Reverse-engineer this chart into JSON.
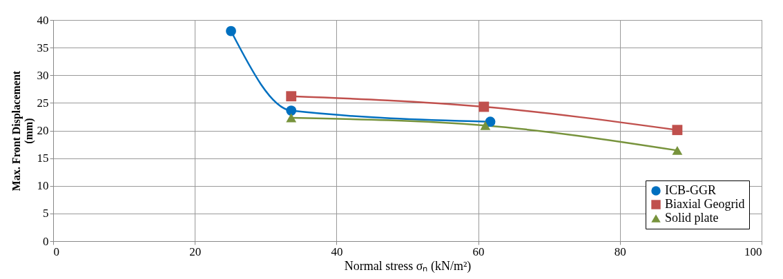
{
  "chart_data": {
    "type": "line",
    "xlabel": "Normal stress σₙ (kN/m²)",
    "ylabel": "Max. Front Displacement (mm)",
    "xlim": [
      0,
      100
    ],
    "xticks": [
      0,
      20,
      40,
      60,
      80,
      100
    ],
    "ylim": [
      0,
      40
    ],
    "yticks": [
      0,
      5,
      10,
      15,
      20,
      25,
      30,
      35,
      40
    ],
    "grid": true,
    "legend": "bottom right",
    "series": [
      {
        "name": "ICB-GGR",
        "color": "#0070c0",
        "marker": "circle",
        "x": [
          25.1,
          33.6,
          61.7
        ],
        "values": [
          38.0,
          23.6,
          21.6
        ]
      },
      {
        "name": "Biaxial Geogrid",
        "color": "#c0504d",
        "marker": "square",
        "x": [
          33.6,
          60.8,
          88.1
        ],
        "values": [
          26.2,
          24.3,
          20.1
        ]
      },
      {
        "name": "Solid plate",
        "color": "#77933c",
        "marker": "triangle",
        "x": [
          33.6,
          61.0,
          88.1
        ],
        "values": [
          22.3,
          20.9,
          16.4
        ]
      }
    ]
  }
}
